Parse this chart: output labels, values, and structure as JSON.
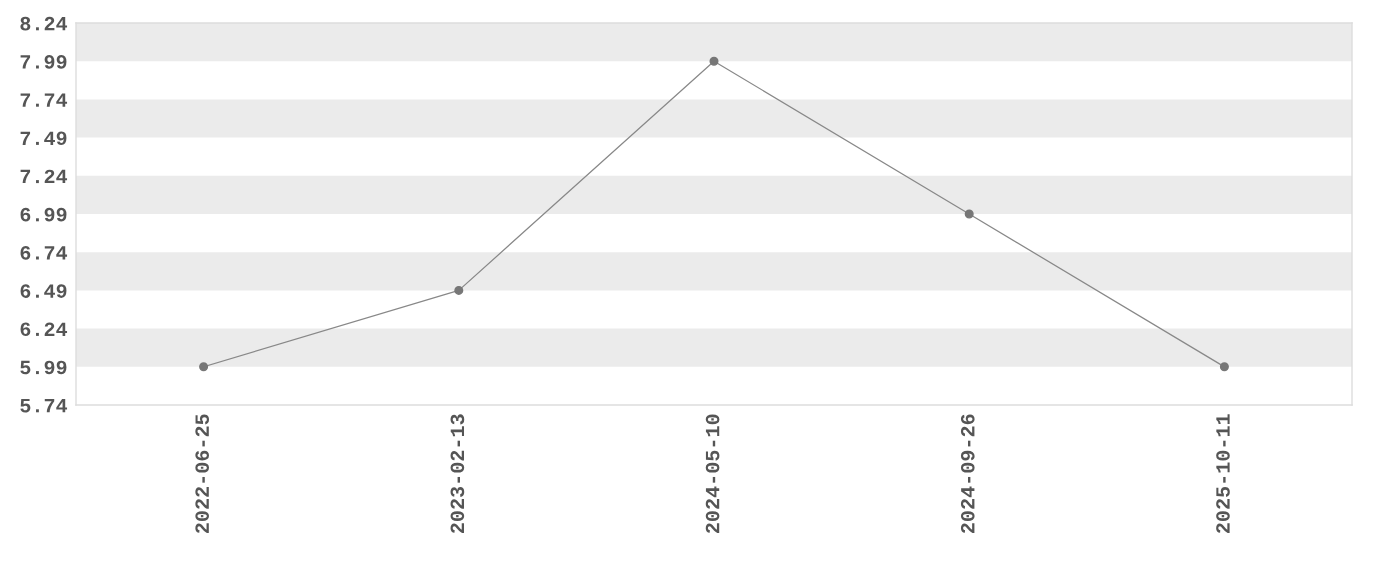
{
  "chart_data": {
    "type": "line",
    "categories": [
      "2022-06-25",
      "2023-02-13",
      "2024-05-10",
      "2024-09-26",
      "2025-10-11"
    ],
    "series": [
      {
        "color": "#888888",
        "values": [
          5.99,
          6.49,
          7.99,
          6.99,
          5.99
        ]
      }
    ],
    "marker": "circle",
    "line_style": "solid",
    "grid": false,
    "ylim": [
      5.74,
      8.24
    ],
    "yticks": [
      5.74,
      5.99,
      6.24,
      6.49,
      6.74,
      6.99,
      7.24,
      7.49,
      7.74,
      7.99,
      8.24
    ],
    "bands": [
      {
        "axis": "y",
        "from": 7.99,
        "to": 8.24,
        "color": "#ebebeb"
      },
      {
        "axis": "y",
        "from": 7.49,
        "to": 7.74,
        "color": "#ebebeb"
      },
      {
        "axis": "y",
        "from": 6.99,
        "to": 7.24,
        "color": "#ebebeb"
      },
      {
        "axis": "y",
        "from": 6.49,
        "to": 6.74,
        "color": "#ebebeb"
      },
      {
        "axis": "y",
        "from": 5.99,
        "to": 6.24,
        "color": "#ebebeb"
      }
    ]
  }
}
